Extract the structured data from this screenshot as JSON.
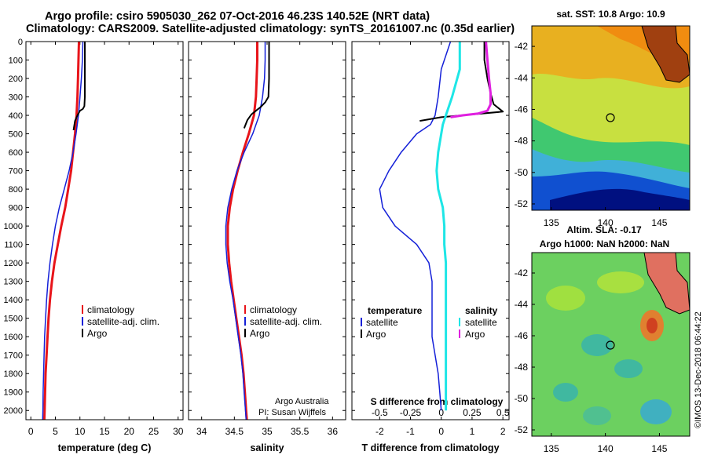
{
  "header": {
    "line1": "Argo profile: csiro 5905030_262 07-Oct-2016 46.23S 140.52E (NRT data)",
    "line2": "Climatology: CARS2009. Satellite-adjusted climatology: synTS_20161007.nc (0.35d earlier)"
  },
  "credits": {
    "line1": "Argo Australia",
    "line2": "PI: Susan Wijffels",
    "stamp": "©IMOS 13-Dec-2018 06:44:22"
  },
  "colors": {
    "climatology": "#e8141a",
    "satellite": "#1420d8",
    "argo": "#000000",
    "salinity_satellite": "#1ee6e6",
    "salinity_argo": "#e020e0"
  },
  "chart_data": [
    {
      "type": "line",
      "xlabel": "temperature (deg C)",
      "ylabel": "",
      "xlim": [
        -1,
        31
      ],
      "ylim": [
        2050,
        0
      ],
      "xticks": [
        0,
        5,
        10,
        15,
        20,
        25,
        30
      ],
      "yticks": [
        0,
        100,
        200,
        300,
        400,
        500,
        600,
        700,
        800,
        900,
        1000,
        1100,
        1200,
        1300,
        1400,
        1500,
        1600,
        1700,
        1800,
        1900,
        2000
      ],
      "grid": false,
      "legend_placement": "bottom-right",
      "series": [
        {
          "name": "climatology",
          "color": "#e8141a",
          "width": 3,
          "x": [
            9.8,
            9.7,
            9.6,
            9.5,
            9.3,
            9.0,
            8.6,
            8.2,
            7.6,
            7.0,
            6.2,
            5.5,
            4.8,
            4.3,
            3.9,
            3.6,
            3.4,
            3.2,
            3.0,
            2.9,
            2.8,
            2.75
          ],
          "y": [
            0,
            100,
            200,
            300,
            400,
            500,
            600,
            700,
            800,
            900,
            1000,
            1100,
            1200,
            1300,
            1400,
            1500,
            1600,
            1700,
            1800,
            1900,
            2000,
            2050
          ]
        },
        {
          "name": "satellite-adj. clim.",
          "color": "#1420d8",
          "width": 1.5,
          "x": [
            10.6,
            10.5,
            10.3,
            10.0,
            9.7,
            9.2,
            8.6,
            7.8,
            6.8,
            5.8,
            5.0,
            4.4,
            3.9,
            3.5,
            3.2,
            3.0,
            2.8,
            2.7,
            2.6,
            2.5,
            2.45,
            2.4
          ],
          "y": [
            0,
            100,
            200,
            300,
            400,
            500,
            600,
            700,
            800,
            900,
            1000,
            1100,
            1200,
            1300,
            1400,
            1500,
            1600,
            1700,
            1800,
            1900,
            2000,
            2050
          ]
        },
        {
          "name": "Argo",
          "color": "#000000",
          "width": 2,
          "x": [
            11.0,
            11.0,
            11.0,
            11.0,
            11.0,
            10.9,
            10.6,
            10.0,
            9.5,
            9.0,
            8.7
          ],
          "y": [
            0,
            50,
            100,
            200,
            300,
            350,
            365,
            375,
            400,
            430,
            480
          ]
        }
      ]
    },
    {
      "type": "line",
      "xlabel": "salinity",
      "ylabel": "",
      "xlim": [
        33.8,
        36.2
      ],
      "ylim": [
        2050,
        0
      ],
      "xticks": [
        34,
        34.5,
        35,
        35.5,
        36
      ],
      "xtick_labels": [
        "34",
        "34.5",
        "35",
        "35.5",
        "36"
      ],
      "grid": false,
      "legend_placement": "bottom-right",
      "series": [
        {
          "name": "climatology",
          "color": "#e8141a",
          "width": 3,
          "x": [
            34.85,
            34.85,
            34.84,
            34.83,
            34.8,
            34.72,
            34.63,
            34.55,
            34.48,
            34.43,
            34.4,
            34.4,
            34.42,
            34.45,
            34.49,
            34.53,
            34.57,
            34.61,
            34.64,
            34.66,
            34.68,
            34.69
          ],
          "y": [
            0,
            100,
            200,
            300,
            400,
            500,
            600,
            700,
            800,
            900,
            1000,
            1100,
            1200,
            1300,
            1400,
            1500,
            1600,
            1700,
            1800,
            1900,
            2000,
            2050
          ]
        },
        {
          "name": "satellite-adj. clim.",
          "color": "#1420d8",
          "width": 1.5,
          "x": [
            34.97,
            34.97,
            34.96,
            34.93,
            34.88,
            34.78,
            34.65,
            34.54,
            34.46,
            34.4,
            34.37,
            34.37,
            34.39,
            34.43,
            34.48,
            34.52,
            34.56,
            34.6,
            34.63,
            34.65,
            34.67,
            34.68
          ],
          "y": [
            0,
            100,
            200,
            300,
            400,
            500,
            600,
            700,
            800,
            900,
            1000,
            1100,
            1200,
            1300,
            1400,
            1500,
            1600,
            1700,
            1800,
            1900,
            2000,
            2050
          ]
        },
        {
          "name": "Argo",
          "color": "#000000",
          "width": 2,
          "x": [
            35.03,
            35.03,
            35.03,
            35.03,
            35.02,
            34.97,
            34.9,
            34.83,
            34.76,
            34.7,
            34.65
          ],
          "y": [
            0,
            50,
            100,
            200,
            300,
            330,
            355,
            375,
            395,
            425,
            470
          ]
        }
      ]
    },
    {
      "type": "line",
      "xlabel": "T difference from climatology",
      "top_axis_label": "S difference from climatology",
      "xlim": [
        -2.9,
        2.2
      ],
      "ylim": [
        2050,
        0
      ],
      "xticks": [
        -2,
        -1,
        0,
        1,
        2
      ],
      "top_ticks": [
        -0.5,
        -0.25,
        0,
        0.25,
        0.5
      ],
      "top_tick_labels": [
        "-0.5",
        "-0.25",
        "0",
        "0.25",
        "0.5"
      ],
      "grid": false,
      "legend_placement": "bottom",
      "legend_groups": {
        "left": "temperature",
        "right": "salinity"
      },
      "series": [
        {
          "name": "satellite",
          "group": "temperature",
          "color": "#1420d8",
          "width": 1.5,
          "x": [
            0.3,
            0.0,
            -0.1,
            -0.2,
            -0.35,
            -0.8,
            -1.3,
            -1.7,
            -2.0,
            -1.9,
            -1.5,
            -0.8,
            -0.4,
            -0.3,
            -0.3,
            -0.3,
            -0.3,
            -0.2,
            -0.1,
            -0.05,
            0.0
          ],
          "y": [
            0,
            150,
            300,
            400,
            450,
            500,
            600,
            700,
            800,
            900,
            1000,
            1100,
            1200,
            1300,
            1400,
            1500,
            1600,
            1700,
            1800,
            1900,
            2000
          ]
        },
        {
          "name": "Argo",
          "group": "temperature",
          "color": "#000000",
          "width": 2,
          "x": [
            1.4,
            1.4,
            1.5,
            1.6,
            1.7,
            2.0,
            1.0,
            0.0,
            -0.7
          ],
          "y": [
            0,
            100,
            200,
            280,
            340,
            380,
            395,
            410,
            430
          ]
        },
        {
          "name": "satellite",
          "group": "salinity",
          "color": "#1ee6e6",
          "width": 3,
          "x": [
            0.6,
            0.6,
            0.35,
            0.15,
            0.05,
            0.0,
            -0.1,
            -0.15,
            -0.1,
            0.05,
            0.1,
            0.1,
            0.15,
            0.15,
            0.15,
            0.15,
            0.15,
            0.15,
            0.15,
            0.15,
            0.15
          ],
          "y": [
            0,
            150,
            300,
            400,
            450,
            500,
            600,
            700,
            800,
            900,
            1000,
            1100,
            1200,
            1300,
            1400,
            1500,
            1600,
            1700,
            1800,
            1900,
            2000
          ]
        },
        {
          "name": "Argo",
          "group": "salinity",
          "color": "#e020e0",
          "width": 3,
          "x": [
            1.45,
            1.5,
            1.55,
            1.6,
            1.6,
            1.5,
            1.2,
            0.7,
            0.3
          ],
          "y": [
            0,
            100,
            200,
            280,
            340,
            375,
            390,
            400,
            410
          ]
        }
      ]
    },
    {
      "type": "heatmap",
      "title": "sat. SST: 10.8 Argo: 10.9",
      "xticks": [
        135,
        140,
        145
      ],
      "yticks": [
        -42,
        -44,
        -46,
        -48,
        -50,
        -52
      ],
      "xlim": [
        133.2,
        147.8
      ],
      "ylim": [
        -52.4,
        -40.7
      ],
      "marker": {
        "lon": 140.52,
        "lat": -46.23
      }
    },
    {
      "type": "heatmap",
      "title": "Altim. SLA: -0.17",
      "subtitle": "Argo h1000: NaN h2000: NaN",
      "xticks": [
        135,
        140,
        145
      ],
      "yticks": [
        -42,
        -44,
        -46,
        -48,
        -50,
        -52
      ],
      "xlim": [
        133.2,
        147.8
      ],
      "ylim": [
        -52.4,
        -40.7
      ],
      "marker": {
        "lon": 140.52,
        "lat": -46.23
      }
    }
  ]
}
